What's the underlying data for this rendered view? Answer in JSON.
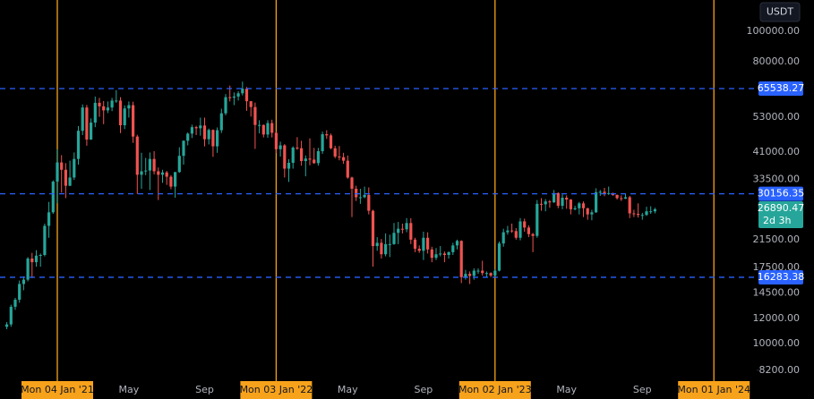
{
  "chart_data": {
    "type": "candlestick",
    "currency": "USDT",
    "countdown": "2d 3h",
    "scale": "log",
    "ylim": [
      6633,
      126000
    ],
    "yticks": [
      {
        "value": 100000,
        "label": "100000.00"
      },
      {
        "value": 80000,
        "label": "80000.00"
      },
      {
        "value": 53000,
        "label": "53000.00"
      },
      {
        "value": 41000,
        "label": "41000.00"
      },
      {
        "value": 33500,
        "label": "33500.00"
      },
      {
        "value": 21500,
        "label": "21500.00"
      },
      {
        "value": 17500,
        "label": "17500.00"
      },
      {
        "value": 14500,
        "label": "14500.00"
      },
      {
        "value": 12000,
        "label": "12000.00"
      },
      {
        "value": 10000,
        "label": "10000.00"
      },
      {
        "value": 8200,
        "label": "8200.00"
      }
    ],
    "hlines": [
      65538.27,
      30156.35,
      16283.38
    ],
    "hline_color": "#2962ff",
    "separator_color": "#f7a21b",
    "up_color": "#26a69a",
    "down_color": "#ef5350",
    "categories": [
      null,
      null,
      null,
      null,
      null,
      null,
      null,
      null,
      null,
      null,
      null,
      null,
      "Mon 04 Jan '21",
      null,
      null,
      null,
      null,
      null,
      null,
      null,
      null,
      null,
      null,
      null,
      null,
      null,
      null,
      null,
      null,
      "May",
      null,
      null,
      null,
      null,
      null,
      null,
      null,
      null,
      null,
      null,
      null,
      null,
      null,
      null,
      null,
      null,
      null,
      "Sep",
      null,
      null,
      null,
      null,
      null,
      null,
      null,
      null,
      null,
      null,
      null,
      null,
      null,
      null,
      null,
      null,
      "Mon 03 Jan '22",
      null,
      null,
      null,
      null,
      null,
      null,
      null,
      null,
      null,
      null,
      null,
      null,
      null,
      null,
      null,
      null,
      "May",
      null,
      null,
      null,
      null,
      null,
      null,
      null,
      null,
      null,
      null,
      null,
      null,
      null,
      null,
      null,
      null,
      null,
      "Sep",
      null,
      null,
      null,
      null,
      null,
      null,
      null,
      null,
      null,
      null,
      null,
      null,
      null,
      null,
      null,
      null,
      "Mon 02 Jan '23",
      null,
      null,
      null,
      null,
      null,
      null,
      null,
      null,
      null,
      null,
      null,
      null,
      null,
      null,
      null,
      null,
      "May",
      null,
      null,
      null,
      null,
      null,
      null,
      null,
      null,
      null,
      null,
      null,
      null,
      null,
      null,
      null,
      null,
      null,
      "Sep",
      null,
      null,
      null,
      null,
      null,
      null,
      null,
      null,
      null,
      null,
      null,
      null,
      null,
      null,
      null,
      null,
      "Mon 01 Jan '24",
      null,
      null,
      null,
      null,
      null,
      null,
      null,
      null,
      null,
      null
    ],
    "open": [
      11300,
      11500,
      13100,
      13800,
      15500,
      16000,
      18700,
      18200,
      19100,
      19200,
      23800,
      26300,
      33000,
      38000,
      36000,
      32000,
      34000,
      39000,
      48000,
      57000,
      45000,
      51000,
      59000,
      57500,
      55800,
      57000,
      60000,
      60000,
      50000,
      56600,
      58000,
      46000,
      34700,
      35600,
      35800,
      39000,
      35600,
      34700,
      35300,
      34200,
      31800,
      35400,
      39900,
      44600,
      47000,
      49300,
      48900,
      49900,
      45100,
      48300,
      42800,
      48200,
      54600,
      61500,
      61300,
      61800,
      63300,
      65500,
      59700,
      57200,
      50100,
      50100,
      46700,
      50800,
      47300,
      41900,
      43100,
      36300,
      37900,
      42400,
      42200,
      38400,
      39100,
      38800,
      37800,
      41300,
      46800,
      46400,
      42200,
      39700,
      39500,
      38500,
      34000,
      31300,
      29400,
      29400,
      29900,
      26600,
      20500,
      21000,
      19300,
      20800,
      20800,
      22600,
      23300,
      23200,
      24300,
      21500,
      20100,
      19800,
      21800,
      20000,
      18800,
      19300,
      19400,
      19200,
      19600,
      20600,
      21300,
      16300,
      16700,
      16450,
      17100,
      17100,
      16800,
      16800,
      16500,
      17100,
      20900,
      22700,
      23000,
      22900,
      21800,
      24600,
      23500,
      22400,
      22100,
      28000,
      27900,
      28500,
      28300,
      30300,
      27600,
      29300,
      28900,
      26900,
      27100,
      28100,
      27100,
      25900,
      26300,
      30500,
      30600,
      30300,
      30300,
      29900,
      29200,
      29100,
      29400,
      26100,
      26000,
      25800,
      25800,
      26500,
      26500,
      null,
      null,
      null,
      null,
      null,
      null,
      null,
      null,
      null,
      null,
      null,
      null,
      null,
      null,
      null,
      null,
      null,
      null,
      null,
      null,
      null,
      null,
      null,
      null
    ],
    "high": [
      11700,
      13300,
      14000,
      15900,
      16400,
      18900,
      19500,
      19900,
      19400,
      24200,
      28400,
      33300,
      41900,
      40100,
      37800,
      38500,
      40900,
      49700,
      58300,
      58100,
      52600,
      61800,
      61200,
      59800,
      59600,
      61200,
      64800,
      61500,
      57900,
      59600,
      59500,
      46600,
      40800,
      39300,
      40900,
      41300,
      36600,
      36000,
      35700,
      34600,
      35400,
      42500,
      44700,
      47400,
      50200,
      49800,
      52900,
      52900,
      48800,
      48500,
      49200,
      56500,
      62900,
      67000,
      63700,
      64300,
      69000,
      66300,
      59800,
      59100,
      51900,
      50300,
      51900,
      52100,
      47600,
      44300,
      43500,
      38900,
      42800,
      45800,
      44600,
      40000,
      45400,
      42300,
      42300,
      47700,
      48200,
      47000,
      43000,
      42900,
      40800,
      40000,
      34200,
      32000,
      31300,
      31800,
      31600,
      26800,
      21900,
      21600,
      22500,
      22300,
      24300,
      24500,
      24200,
      25200,
      25200,
      21800,
      20600,
      22800,
      22700,
      20400,
      20200,
      20500,
      19700,
      19700,
      21000,
      21500,
      21400,
      17200,
      17000,
      17400,
      17400,
      18400,
      17000,
      16900,
      17300,
      21200,
      23300,
      23800,
      24200,
      23400,
      25200,
      25100,
      23900,
      22600,
      28800,
      29200,
      29000,
      28800,
      31000,
      30500,
      30000,
      29800,
      29000,
      27600,
      28400,
      28500,
      27200,
      26800,
      31400,
      31000,
      31500,
      31800,
      30400,
      30000,
      29800,
      30200,
      29700,
      26800,
      28100,
      26200,
      27400,
      27500,
      27200,
      null,
      null,
      null,
      null,
      null,
      null,
      null,
      null,
      null,
      null,
      null,
      null,
      null,
      null,
      null,
      null,
      null,
      null,
      null,
      null,
      null,
      null,
      null,
      null
    ],
    "low": [
      11100,
      11300,
      12800,
      13500,
      14800,
      15800,
      16200,
      17600,
      17600,
      19000,
      21800,
      26000,
      28100,
      30400,
      29200,
      31900,
      33400,
      37400,
      46500,
      43000,
      44900,
      49300,
      53200,
      50400,
      54700,
      55500,
      59000,
      47200,
      48600,
      52900,
      43900,
      30100,
      31300,
      34600,
      31000,
      34800,
      28800,
      32700,
      32200,
      31200,
      29300,
      35200,
      37400,
      43100,
      45500,
      46500,
      46300,
      42800,
      43400,
      39600,
      40800,
      47200,
      53800,
      59600,
      58000,
      60000,
      62300,
      55600,
      53300,
      42000,
      47100,
      45700,
      45600,
      45700,
      40700,
      39700,
      34000,
      32900,
      36300,
      41700,
      37100,
      34300,
      37200,
      37600,
      37100,
      40500,
      45200,
      41900,
      39200,
      38600,
      37600,
      33700,
      25400,
      28600,
      28000,
      29200,
      25900,
      17600,
      19800,
      18700,
      19000,
      18900,
      20700,
      20800,
      22500,
      22700,
      20800,
      19600,
      19500,
      18500,
      19400,
      18200,
      18500,
      19000,
      18200,
      18700,
      19200,
      20000,
      15600,
      16000,
      15500,
      16000,
      16700,
      16500,
      16300,
      16300,
      16400,
      17000,
      20400,
      22300,
      22600,
      21500,
      21400,
      22800,
      21900,
      19600,
      21800,
      26600,
      26500,
      27200,
      28200,
      27100,
      26900,
      27000,
      25900,
      26700,
      25900,
      25400,
      24900,
      24800,
      26200,
      29700,
      29600,
      29900,
      29700,
      28900,
      28600,
      29000,
      25200,
      25400,
      25300,
      24900,
      25600,
      26000,
      26100,
      null,
      null,
      null,
      null,
      null,
      null,
      null,
      null,
      null,
      null,
      null,
      null,
      null,
      null,
      null,
      null,
      null,
      null,
      null,
      null,
      null,
      null,
      null,
      null
    ],
    "close": [
      11500,
      13100,
      13800,
      15500,
      16000,
      18700,
      18200,
      19100,
      19200,
      23800,
      26300,
      33000,
      38000,
      36000,
      32000,
      34000,
      39000,
      48000,
      57000,
      45000,
      51000,
      59000,
      57500,
      55800,
      57000,
      60000,
      60000,
      50000,
      56600,
      58000,
      46000,
      34700,
      35600,
      35800,
      39000,
      35600,
      34700,
      35300,
      34200,
      31800,
      35400,
      39900,
      44600,
      47000,
      49300,
      48900,
      49900,
      45100,
      48300,
      42800,
      48200,
      54600,
      61500,
      61300,
      61800,
      63300,
      65500,
      59700,
      57200,
      50100,
      50100,
      46700,
      50800,
      47300,
      41900,
      43100,
      36300,
      37900,
      42400,
      42200,
      38400,
      39100,
      38800,
      37800,
      41300,
      46800,
      46400,
      42200,
      39700,
      39500,
      38500,
      34000,
      31300,
      29400,
      29400,
      29900,
      26600,
      20500,
      21000,
      19300,
      20800,
      20800,
      22600,
      23300,
      23200,
      24300,
      21500,
      20100,
      19800,
      21800,
      20000,
      18800,
      19300,
      19400,
      19200,
      19600,
      20600,
      21300,
      16300,
      16700,
      16450,
      17100,
      17100,
      16800,
      16800,
      16500,
      17100,
      20900,
      22700,
      23000,
      22900,
      21800,
      24600,
      23500,
      22400,
      22100,
      28000,
      27900,
      28500,
      28300,
      30300,
      27600,
      29300,
      28900,
      26900,
      27100,
      28100,
      27100,
      25900,
      26300,
      30500,
      30600,
      30300,
      30300,
      29900,
      29200,
      29100,
      29400,
      26100,
      26000,
      25800,
      25800,
      26500,
      26500,
      26890.47,
      null,
      null,
      null,
      null,
      null,
      null,
      null,
      null,
      null,
      null,
      null,
      null,
      null,
      null,
      null,
      null,
      null,
      null,
      null,
      null,
      null,
      null,
      null,
      null
    ]
  }
}
